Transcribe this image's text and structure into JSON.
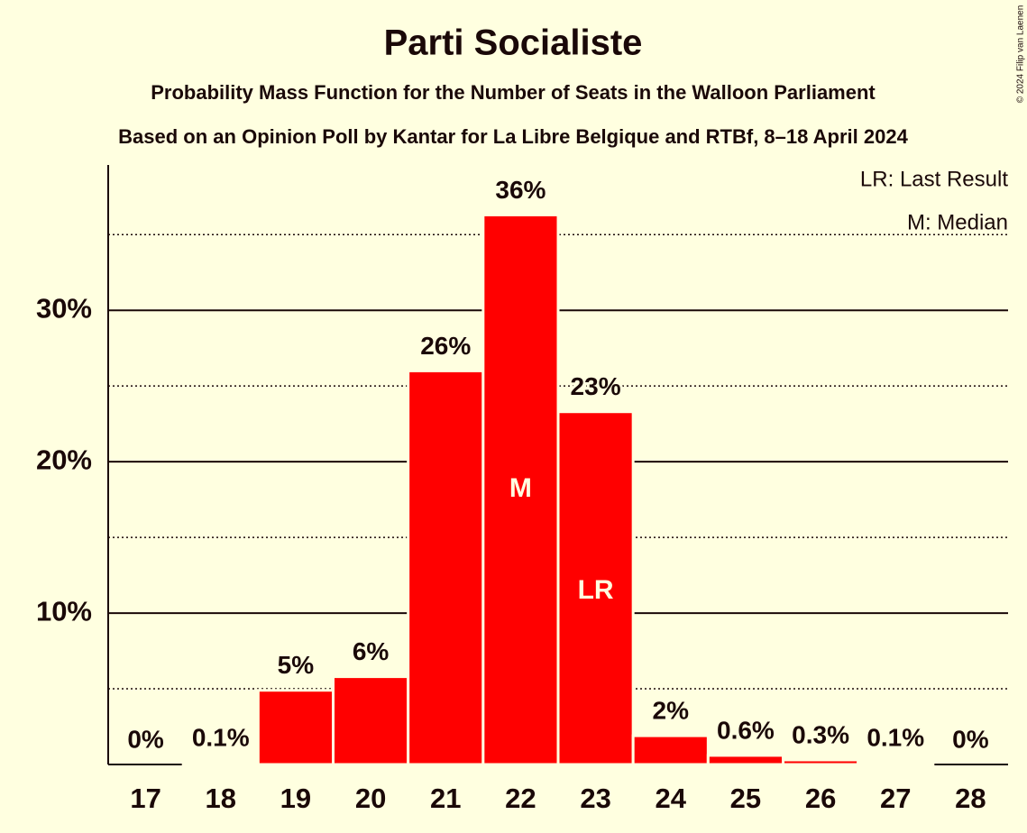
{
  "chart_data": {
    "type": "bar",
    "title": "Parti Socialiste",
    "subtitle": "Probability Mass Function for the Number of Seats in the Walloon Parliament",
    "subtitle2": "Based on an Opinion Poll by Kantar for La Libre Belgique and RTBf, 8–18 April 2024",
    "copyright": "© 2024 Filip van Laenen",
    "legend": [
      "LR: Last Result",
      "M: Median"
    ],
    "categories": [
      17,
      18,
      19,
      20,
      21,
      22,
      23,
      24,
      25,
      26,
      27,
      28
    ],
    "values": [
      0,
      0.1,
      4.9,
      5.8,
      26.0,
      36.3,
      23.3,
      1.9,
      0.6,
      0.3,
      0.1,
      0
    ],
    "value_labels": [
      "0%",
      "0.1%",
      "5%",
      "6%",
      "26%",
      "36%",
      "23%",
      "2%",
      "0.6%",
      "0.3%",
      "0.1%",
      "0%"
    ],
    "markers": [
      {
        "label": "M",
        "category": 22
      },
      {
        "label": "LR",
        "category": 23
      }
    ],
    "color": "#ff0000",
    "ylim": [
      0,
      39.6
    ],
    "yticks": [
      {
        "value": 10,
        "label": "10%"
      },
      {
        "value": 20,
        "label": "20%"
      },
      {
        "value": 30,
        "label": "30%"
      }
    ],
    "minor_yticks": [
      5,
      15,
      25,
      35
    ],
    "grid": true
  }
}
